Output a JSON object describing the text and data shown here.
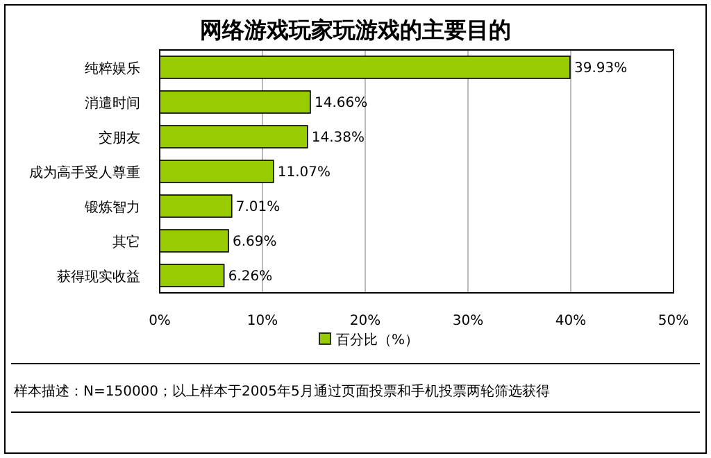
{
  "chart_data": {
    "type": "bar",
    "orientation": "horizontal",
    "title": "网络游戏玩家玩游戏的主要目的",
    "categories": [
      "纯粹娱乐",
      "消遣时间",
      "交朋友",
      "成为高手受人尊重",
      "锻炼智力",
      "其它",
      "获得现实收益"
    ],
    "series": [
      {
        "name": "百分比（%）",
        "color": "#99cc00",
        "values": [
          39.93,
          14.66,
          14.38,
          11.07,
          7.01,
          6.69,
          6.26
        ],
        "value_labels": [
          "39.93%",
          "14.66%",
          "14.38%",
          "11.07%",
          "7.01%",
          "6.69%",
          "6.26%"
        ]
      }
    ],
    "xlim": [
      0,
      50
    ],
    "xticks": [
      {
        "value": 0,
        "label": "0%"
      },
      {
        "value": 10,
        "label": "10%"
      },
      {
        "value": 20,
        "label": "20%"
      },
      {
        "value": 30,
        "label": "30%"
      },
      {
        "value": 40,
        "label": "40%"
      },
      {
        "value": 50,
        "label": "50%"
      }
    ],
    "grid": "x",
    "legend": "bottom",
    "annotations": [
      "样本描述：N=150000；以上样本于2005年5月通过页面投票和手机投票两轮筛选获得"
    ]
  }
}
